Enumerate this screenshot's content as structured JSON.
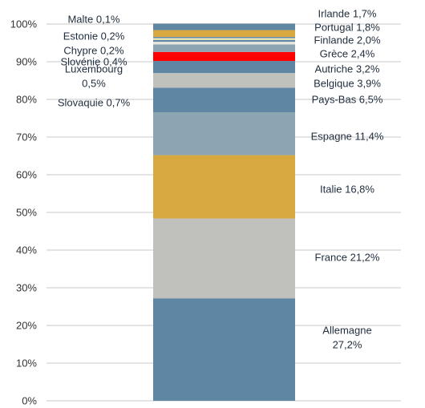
{
  "chart_data": {
    "type": "bar",
    "stacked": true,
    "ylim": [
      0,
      100
    ],
    "yticks": [
      "0%",
      "10%",
      "20%",
      "30%",
      "40%",
      "50%",
      "60%",
      "70%",
      "80%",
      "90%",
      "100%"
    ],
    "grid": true,
    "series": [
      {
        "name": "Allemagne",
        "value": 27.2,
        "label": "Allemagne\n27,2%",
        "color": "#5f86a2"
      },
      {
        "name": "France",
        "value": 21.2,
        "label": "France 21,2%",
        "color": "#c0c0bd"
      },
      {
        "name": "Italie",
        "value": 16.8,
        "label": "Italie 16,8%",
        "color": "#d8a940"
      },
      {
        "name": "Espagne",
        "value": 11.4,
        "label": "Espagne 11,4%",
        "color": "#8ba5b2"
      },
      {
        "name": "Pays-Bas",
        "value": 6.5,
        "label": "Pays-Bas 6,5%",
        "color": "#5f86a2"
      },
      {
        "name": "Belgique",
        "value": 3.9,
        "label": "Belgique 3,9%",
        "color": "#c0c0bd"
      },
      {
        "name": "Autriche",
        "value": 3.2,
        "label": "Autriche 3,2%",
        "color": "#5f86a2"
      },
      {
        "name": "Grèce",
        "value": 2.4,
        "label": "Grèce 2,4%",
        "color": "#ff0000"
      },
      {
        "name": "Finlande",
        "value": 2.0,
        "label": "Finlande 2,0%",
        "color": "#8ba5b2"
      },
      {
        "name": "Slovaquie",
        "value": 0.7,
        "label": "Slovaquie 0,7%",
        "color": "#e8e6dc"
      },
      {
        "name": "Luxembourg",
        "value": 0.5,
        "label": "Luxembourg\n0,5%",
        "color": "#5f86a2"
      },
      {
        "name": "Slovénie",
        "value": 0.4,
        "label": "Slovénie 0,4%",
        "color": "#f2e8b0"
      },
      {
        "name": "Chypre",
        "value": 0.2,
        "label": "Chypre 0,2%",
        "color": "#8ba5b2"
      },
      {
        "name": "Estonie",
        "value": 0.2,
        "label": "Estonie 0,2%",
        "color": "#5f86a2"
      },
      {
        "name": "Portugal",
        "value": 1.8,
        "label": "Portugal 1,8%",
        "color": "#d8a940"
      },
      {
        "name": "Irlande",
        "value": 1.7,
        "label": "Irlande 1,7%",
        "color": "#5f86a2"
      },
      {
        "name": "Malte",
        "value": 0.1,
        "label": "Malte 0,1%",
        "color": "#c0c0bd"
      }
    ]
  }
}
